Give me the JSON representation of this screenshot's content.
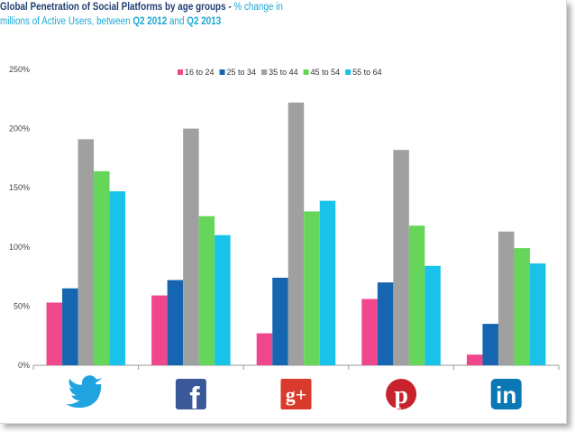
{
  "title": {
    "bold": "Global Penetration of Social Platforms by age groups - ",
    "sub1": "% change in",
    "line2_prefix": "millions of Active Users, between ",
    "period1": "Q2 2012",
    "between_and": " and ",
    "period2": "Q2 2013"
  },
  "chart_data": {
    "type": "bar",
    "title": "Global Penetration of Social Platforms by age groups - % change in millions of Active Users, between Q2 2012 and Q2 2013",
    "categories": [
      "Twitter",
      "Facebook",
      "Google+",
      "Pinterest",
      "LinkedIn"
    ],
    "series": [
      {
        "name": "16 to 24",
        "color": "#f0468c",
        "values": [
          53,
          59,
          27,
          56,
          9
        ]
      },
      {
        "name": "25 to 34",
        "color": "#1565b0",
        "values": [
          65,
          72,
          74,
          70,
          35
        ]
      },
      {
        "name": "35 to 44",
        "color": "#a0a0a0",
        "values": [
          191,
          200,
          222,
          182,
          113
        ]
      },
      {
        "name": "45 to 54",
        "color": "#66d65a",
        "values": [
          164,
          126,
          130,
          118,
          99
        ]
      },
      {
        "name": "55 to 64",
        "color": "#19c2e8",
        "values": [
          147,
          110,
          139,
          84,
          86
        ]
      }
    ],
    "y_ticks": [
      "0%",
      "50%",
      "100%",
      "150%",
      "200%",
      "250%"
    ],
    "ylim": [
      0,
      250
    ],
    "legend_position": "top-center",
    "grid": false
  },
  "icons": [
    {
      "name": "twitter-icon",
      "color": "#21a3e0"
    },
    {
      "name": "facebook-icon",
      "color": "#3b5998",
      "glyph": "f"
    },
    {
      "name": "google-plus-icon",
      "color": "#d93a2b",
      "glyph": "g+"
    },
    {
      "name": "pinterest-icon",
      "color": "#c8232c",
      "glyph": "p"
    },
    {
      "name": "linkedin-icon",
      "color": "#0b78b6",
      "glyph": "in"
    }
  ]
}
